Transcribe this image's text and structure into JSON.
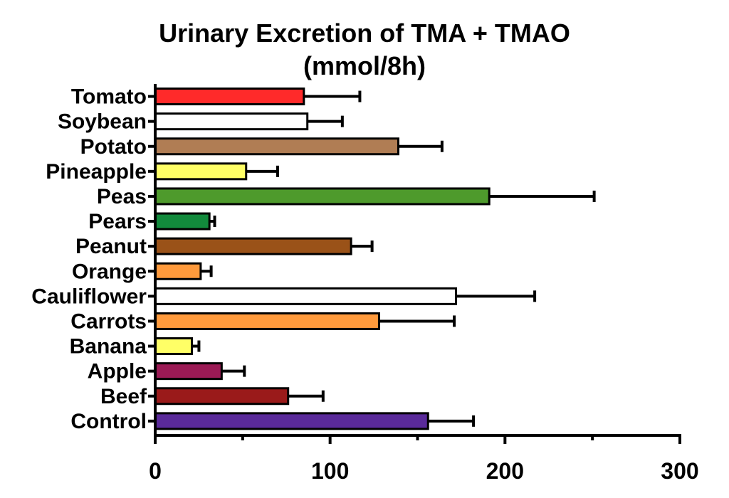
{
  "chart_data": {
    "type": "bar",
    "orientation": "horizontal",
    "title_line1": "Urinary Excretion of TMA + TMAO",
    "title_line2": "(mmol/8h)",
    "xlabel": "",
    "ylabel": "",
    "xlim": [
      0,
      300
    ],
    "x_ticks": [
      "0",
      "100",
      "200",
      "300"
    ],
    "grid": false,
    "error_bars": true,
    "categories": [
      "Tomato",
      "Soybean",
      "Potato",
      "Pineapple",
      "Peas",
      "Pears",
      "Peanut",
      "Orange",
      "Cauliflower",
      "Carrots",
      "Banana",
      "Apple",
      "Beef",
      "Control"
    ],
    "values": [
      85,
      87,
      139,
      52,
      191,
      31,
      112,
      26,
      172,
      128,
      21,
      38,
      76,
      156
    ],
    "errors": [
      32,
      20,
      25,
      18,
      60,
      3,
      12,
      6,
      45,
      43,
      4,
      13,
      20,
      26
    ],
    "colors": [
      "#ff2a2a",
      "#ffffff",
      "#b07d54",
      "#ffff66",
      "#4e9a2c",
      "#128a3c",
      "#9a5218",
      "#ff9a3c",
      "#ffffff",
      "#ff9a3c",
      "#ffff66",
      "#9b1a55",
      "#9a1a1a",
      "#5a2a9a"
    ]
  }
}
